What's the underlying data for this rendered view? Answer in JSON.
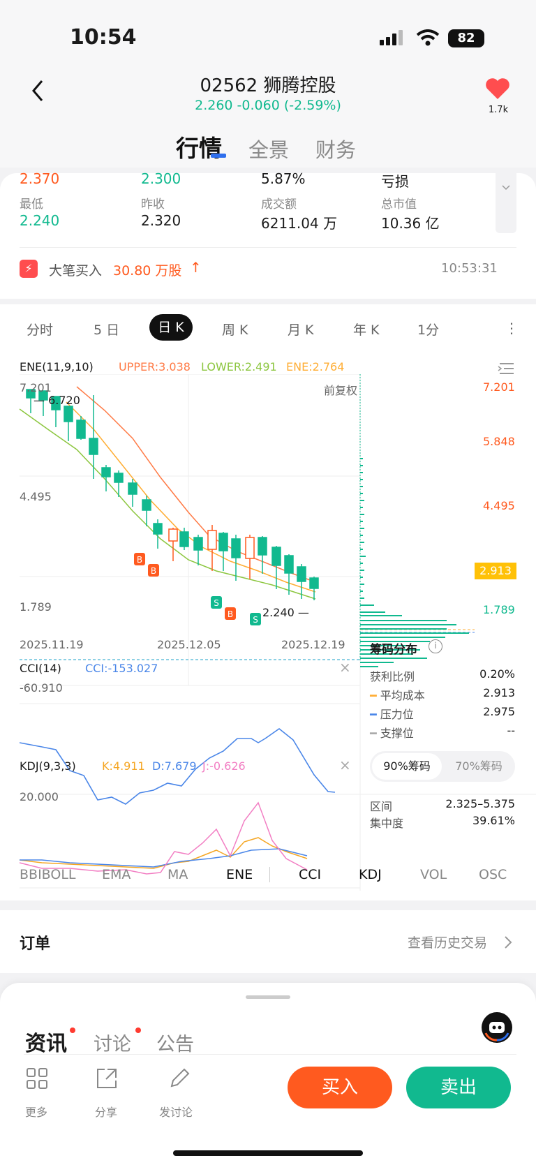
{
  "status": {
    "time": "10:54",
    "battery": "82"
  },
  "header": {
    "code": "02562",
    "name": "狮腾控股",
    "price_line": "2.260 -0.060 (-2.59%)",
    "fav_count": "1.7k"
  },
  "tabs": [
    "行情",
    "全景",
    "财务"
  ],
  "stats": {
    "high": "2.370",
    "open": "2.300",
    "turnover_rate": "5.87%",
    "pe_label": "亏损",
    "low_label": "最低",
    "low": "2.240",
    "prev_close_label": "昨收",
    "prev_close": "2.320",
    "amount_label": "成交额",
    "amount": "6211.04 万",
    "mcap_label": "总市值",
    "mcap": "10.36 亿"
  },
  "notice": {
    "label": "大笔买入",
    "value": "30.80 万股",
    "arrow": "↑",
    "time": "10:53:31"
  },
  "periods": [
    "分时",
    "5 日",
    "日 K",
    "周 K",
    "月 K",
    "年 K",
    "1分"
  ],
  "ene": {
    "label": "ENE(11,9,10)",
    "upper": "UPPER:3.038",
    "lower": "LOWER:2.491",
    "ene": "ENE:2.764",
    "adj": "前复权"
  },
  "kline": {
    "y_top": "7.201",
    "y_mid": "4.495",
    "y_bot": "1.789",
    "r1": "7.201",
    "r2": "5.848",
    "r3": "4.495",
    "r4": "2.913",
    "r5": "1.789",
    "max_note": "6.720",
    "min_note": "2.240",
    "d1": "2025.11.19",
    "d2": "2025.12.05",
    "d3": "2025.12.19",
    "marks": [
      "B",
      "B",
      "S",
      "B",
      "S"
    ]
  },
  "chips": {
    "title": "筹码分布",
    "profit_label": "获利比例",
    "profit": "0.20%",
    "avg_label": "平均成本",
    "avg": "2.913",
    "press_label": "压力位",
    "press": "2.975",
    "support_label": "支撑位",
    "support": "--",
    "tab1": "90%筹码",
    "tab2": "70%筹码",
    "range_label": "区间",
    "range": "2.325–5.375",
    "conc_label": "集中度",
    "conc": "39.61%"
  },
  "cci": {
    "label": "CCI(14)",
    "value": "CCI:-153.027",
    "level": "-60.910"
  },
  "kdj": {
    "label": "KDJ(9,3,3)",
    "k": "K:4.911",
    "d": "D:7.679",
    "j": "J:-0.626",
    "level": "20.000"
  },
  "indicators": [
    "BBIBOLL",
    "EMA",
    "MA",
    "ENE",
    "CCI",
    "KDJ",
    "VOL",
    "OSC"
  ],
  "order": {
    "title": "订单",
    "history": "查看历史交易"
  },
  "news": {
    "tabs": [
      "资讯",
      "讨论",
      "公告"
    ]
  },
  "bottom": {
    "more": "更多",
    "share": "分享",
    "post": "发讨论",
    "buy": "买入",
    "sell": "卖出"
  },
  "colors": {
    "up": "#ff5a1f",
    "down": "#11b98f",
    "ene_upper": "#ff7a45",
    "ene_lower": "#8cc63f",
    "ene_mid": "#ffad33",
    "cci": "#4a86e8",
    "kdj_k": "#f5a623",
    "kdj_d": "#4a86e8",
    "kdj_j": "#f27ec3"
  }
}
